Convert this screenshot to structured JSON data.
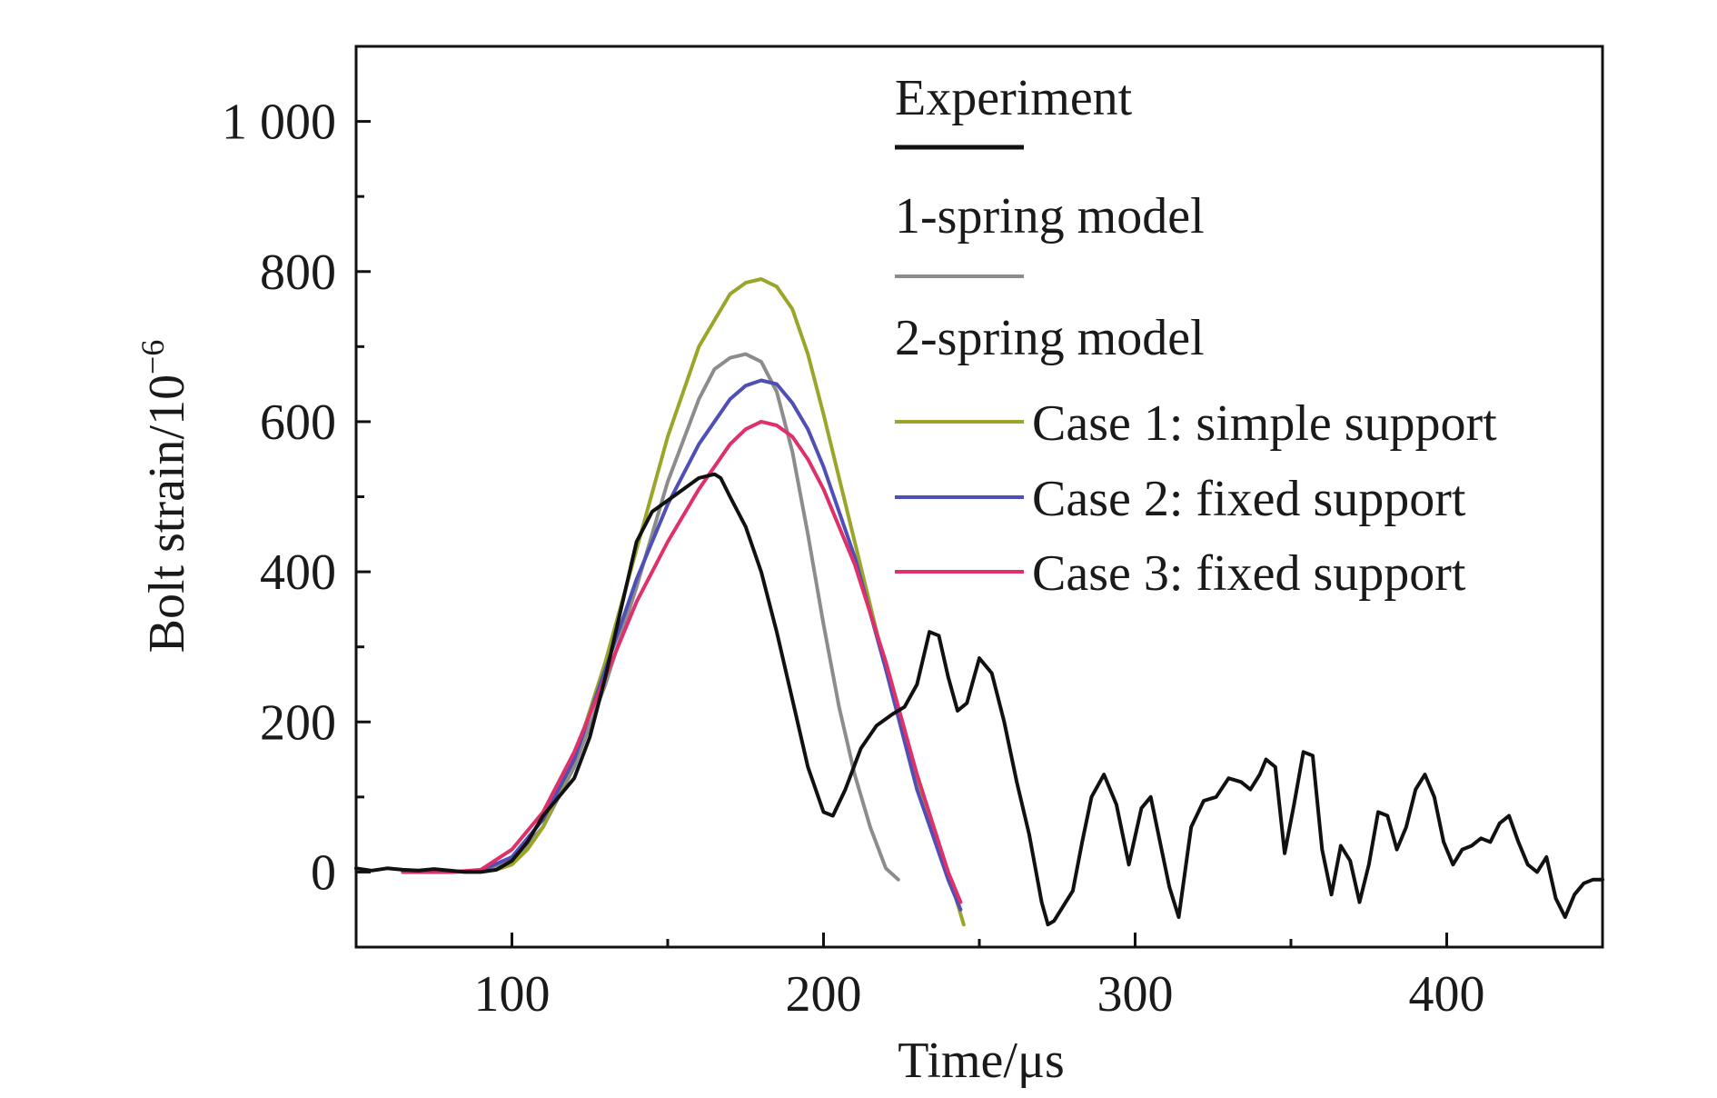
{
  "chart_data": {
    "type": "line",
    "xlabel": "Time/μs",
    "ylabel": "Bolt strain/10",
    "ylabel_exponent": "−6",
    "xlim": [
      50,
      450
    ],
    "ylim": [
      -100,
      1100
    ],
    "xticks": [
      100,
      200,
      300,
      400
    ],
    "xtick_labels": [
      "100",
      "200",
      "300",
      "400"
    ],
    "yticks": [
      0,
      200,
      400,
      600,
      800,
      1000
    ],
    "ytick_labels": [
      "0",
      "200",
      "400",
      "600",
      "800",
      "1 000"
    ],
    "grid": false,
    "legend_position": "top-right",
    "legend_headers": {
      "experiment": "Experiment",
      "one_spring": "1-spring model",
      "two_spring": "2-spring model"
    },
    "series": [
      {
        "name": "Experiment",
        "color": "#111111",
        "x": [
          50,
          55,
          60,
          65,
          70,
          75,
          80,
          85,
          90,
          95,
          100,
          105,
          110,
          115,
          120,
          125,
          130,
          135,
          140,
          145,
          150,
          155,
          160,
          165,
          167,
          170,
          175,
          180,
          185,
          190,
          195,
          200,
          203,
          207,
          212,
          217,
          222,
          226,
          230,
          234,
          237,
          240,
          243,
          246,
          250,
          254,
          258,
          262,
          266,
          270,
          272,
          274,
          277,
          280,
          283,
          286,
          290,
          294,
          298,
          302,
          305,
          308,
          311,
          314,
          318,
          322,
          326,
          330,
          334,
          337,
          340,
          342,
          345,
          348,
          351,
          354,
          357,
          360,
          363,
          366,
          369,
          372,
          375,
          378,
          381,
          384,
          387,
          390,
          393,
          396,
          399,
          402,
          405,
          408,
          411,
          414,
          417,
          420,
          423,
          426,
          429,
          432,
          435,
          438,
          441,
          444,
          447,
          450
        ],
        "y": [
          5,
          2,
          5,
          3,
          2,
          4,
          2,
          0,
          0,
          3,
          15,
          40,
          75,
          100,
          125,
          180,
          260,
          350,
          440,
          480,
          495,
          510,
          525,
          530,
          525,
          500,
          460,
          400,
          320,
          230,
          140,
          80,
          75,
          110,
          165,
          195,
          210,
          220,
          250,
          320,
          315,
          260,
          215,
          225,
          285,
          265,
          200,
          120,
          50,
          -40,
          -70,
          -65,
          -45,
          -25,
          40,
          100,
          130,
          90,
          10,
          85,
          100,
          40,
          -20,
          -60,
          60,
          95,
          100,
          125,
          120,
          110,
          130,
          150,
          140,
          25,
          90,
          160,
          155,
          30,
          -30,
          35,
          15,
          -40,
          10,
          80,
          75,
          30,
          60,
          110,
          130,
          100,
          40,
          10,
          30,
          35,
          45,
          40,
          65,
          75,
          40,
          10,
          0,
          20,
          -35,
          -60,
          -30,
          -15,
          -10,
          -10
        ],
        "width": 4
      },
      {
        "name": "1-spring model",
        "color": "#8c8c8c",
        "x": [
          65,
          80,
          90,
          100,
          110,
          120,
          130,
          140,
          150,
          160,
          165,
          170,
          175,
          180,
          185,
          190,
          195,
          200,
          205,
          210,
          215,
          220,
          224
        ],
        "y": [
          0,
          0,
          2,
          15,
          60,
          140,
          250,
          380,
          520,
          630,
          670,
          685,
          690,
          680,
          640,
          560,
          450,
          330,
          220,
          130,
          60,
          5,
          -10
        ],
        "width": 4
      },
      {
        "name": "Case 1: simple support",
        "color": "#9aa52a",
        "x": [
          65,
          80,
          90,
          95,
          100,
          105,
          110,
          120,
          130,
          140,
          150,
          160,
          170,
          175,
          180,
          185,
          190,
          195,
          200,
          210,
          220,
          230,
          240,
          245
        ],
        "y": [
          0,
          0,
          1,
          3,
          10,
          30,
          60,
          150,
          280,
          430,
          580,
          700,
          770,
          785,
          790,
          780,
          750,
          690,
          610,
          440,
          270,
          120,
          0,
          -70
        ],
        "width": 4
      },
      {
        "name": "Case 2: fixed support",
        "color": "#4f4fb5",
        "x": [
          65,
          80,
          90,
          100,
          110,
          120,
          130,
          140,
          150,
          160,
          170,
          175,
          180,
          185,
          190,
          195,
          200,
          210,
          220,
          230,
          240,
          244
        ],
        "y": [
          0,
          0,
          2,
          20,
          70,
          150,
          270,
          390,
          490,
          570,
          630,
          648,
          655,
          650,
          625,
          590,
          540,
          420,
          270,
          110,
          -10,
          -50
        ],
        "width": 4
      },
      {
        "name": "Case 3: fixed support",
        "color": "#e0306a",
        "x": [
          65,
          80,
          90,
          100,
          110,
          120,
          130,
          140,
          150,
          160,
          170,
          175,
          180,
          185,
          190,
          195,
          200,
          210,
          220,
          230,
          240,
          244
        ],
        "y": [
          0,
          0,
          3,
          30,
          80,
          160,
          260,
          360,
          440,
          510,
          570,
          590,
          600,
          595,
          580,
          550,
          510,
          410,
          280,
          130,
          0,
          -40
        ],
        "width": 4
      }
    ]
  }
}
